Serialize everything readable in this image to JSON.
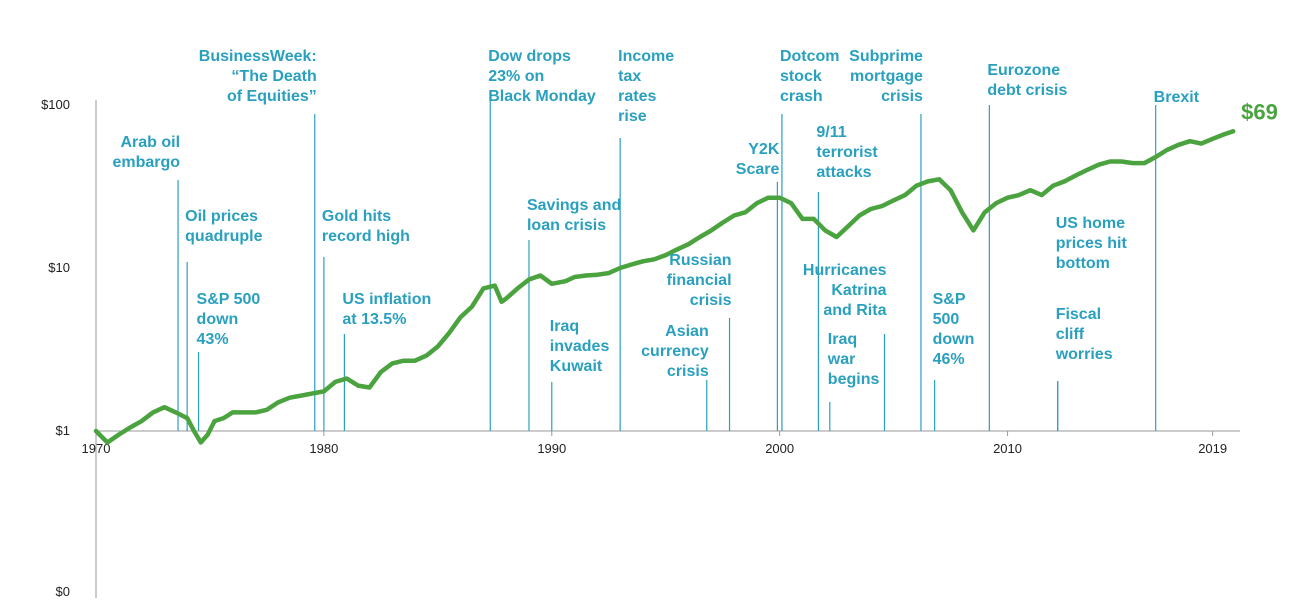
{
  "chart_data": {
    "type": "line",
    "title": "",
    "xlabel": "",
    "ylabel": "",
    "y_scale": "log",
    "y_ticks": [
      {
        "value": 100,
        "label": "$100"
      },
      {
        "value": 10,
        "label": "$10"
      },
      {
        "value": 1,
        "label": "$1"
      },
      {
        "value": 0,
        "label": "$0"
      }
    ],
    "x_ticks": [
      "1970",
      "1980",
      "1990",
      "2000",
      "2010",
      "2019"
    ],
    "xlim": [
      1970,
      2020.2
    ],
    "colors": {
      "line": "#4aa33e",
      "annotation": "#2aa0bf",
      "axis": "#9a9a9a"
    },
    "end_label": "$69",
    "series": [
      {
        "x": [
          1970.0,
          1970.5,
          1971.0,
          1971.5,
          1972.0,
          1972.5,
          1973.0,
          1973.5,
          1974.0,
          1974.3,
          1974.6,
          1974.9,
          1975.2,
          1975.6,
          1976.0,
          1976.5,
          1977.0,
          1977.5,
          1978.0,
          1978.5,
          1979.0,
          1979.5,
          1980.0,
          1980.5,
          1981.0,
          1981.5,
          1982.0,
          1982.5,
          1983.0,
          1983.5,
          1984.0,
          1984.5,
          1985.0,
          1985.5,
          1986.0,
          1986.5,
          1987.0,
          1987.5,
          1987.8,
          1988.0,
          1988.5,
          1989.0,
          1989.5,
          1990.0,
          1990.6,
          1991.0,
          1991.5,
          1992.0,
          1992.5,
          1993.0,
          1993.5,
          1994.0,
          1994.5,
          1995.0,
          1995.5,
          1996.0,
          1996.5,
          1997.0,
          1997.5,
          1998.0,
          1998.5,
          1999.0,
          1999.5,
          2000.0,
          2000.5,
          2001.0,
          2001.5,
          2002.0,
          2002.5,
          2003.0,
          2003.5,
          2004.0,
          2004.5,
          2005.0,
          2005.5,
          2006.0,
          2006.5,
          2007.0,
          2007.5,
          2008.0,
          2008.5,
          2009.0,
          2009.5,
          2010.0,
          2010.5,
          2011.0,
          2011.5,
          2012.0,
          2012.5,
          2013.0,
          2013.5,
          2014.0,
          2014.5,
          2015.0,
          2015.5,
          2016.0,
          2016.5,
          2017.0,
          2017.5,
          2018.0,
          2018.5,
          2019.0,
          2019.5,
          2019.9
        ],
        "values": [
          1.0,
          0.85,
          0.95,
          1.05,
          1.15,
          1.3,
          1.4,
          1.3,
          1.2,
          1.0,
          0.85,
          0.95,
          1.15,
          1.2,
          1.3,
          1.3,
          1.3,
          1.35,
          1.5,
          1.6,
          1.65,
          1.7,
          1.75,
          2.0,
          2.1,
          1.9,
          1.85,
          2.3,
          2.6,
          2.7,
          2.7,
          2.9,
          3.3,
          4.0,
          5.0,
          5.8,
          7.5,
          7.8,
          6.2,
          6.5,
          7.5,
          8.5,
          9.0,
          8.0,
          8.3,
          8.8,
          9.0,
          9.1,
          9.3,
          10.0,
          10.5,
          11.0,
          11.3,
          12.0,
          13.0,
          14.0,
          15.5,
          17.0,
          19.0,
          21.0,
          22.0,
          25.0,
          27.0,
          27.0,
          25.0,
          20.0,
          20.0,
          17.0,
          15.5,
          18.0,
          21.0,
          23.0,
          24.0,
          26.0,
          28.0,
          32.0,
          34.0,
          35.0,
          30.0,
          22.0,
          17.0,
          22.0,
          25.0,
          27.0,
          28.0,
          30.0,
          28.0,
          32.0,
          34.0,
          37.0,
          40.0,
          43.0,
          45.0,
          45.0,
          44.0,
          44.0,
          48.0,
          53.0,
          57.0,
          60.0,
          58.0,
          62.0,
          66.0,
          69.0
        ]
      }
    ],
    "annotations": [
      {
        "x": 1973.6,
        "lines": [
          "Arab oil",
          "embargo"
        ],
        "anchor": "end"
      },
      {
        "x": 1974.0,
        "lines": [
          "Oil prices",
          "quadruple"
        ],
        "anchor": "start"
      },
      {
        "x": 1974.5,
        "lines": [
          "S&P 500",
          "down",
          "43%"
        ],
        "anchor": "start"
      },
      {
        "x": 1979.6,
        "lines": [
          "BusinessWeek:",
          "“The Death",
          "of Equities”"
        ],
        "anchor": "end"
      },
      {
        "x": 1980.0,
        "lines": [
          "Gold hits",
          "record high"
        ],
        "anchor": "start"
      },
      {
        "x": 1980.9,
        "lines": [
          "US inflation",
          "at 13.5%"
        ],
        "anchor": "start"
      },
      {
        "x": 1987.3,
        "lines": [
          "Dow drops",
          "23% on",
          "Black Monday"
        ],
        "anchor": "start"
      },
      {
        "x": 1989.0,
        "lines": [
          "Savings and",
          "loan crisis"
        ],
        "anchor": "start"
      },
      {
        "x": 1990.0,
        "lines": [
          "Iraq",
          "invades",
          "Kuwait"
        ],
        "anchor": "start"
      },
      {
        "x": 1993.0,
        "lines": [
          "Income",
          "tax",
          "rates",
          "rise"
        ],
        "anchor": "start"
      },
      {
        "x": 1996.8,
        "lines": [
          "Asian",
          "currency",
          "crisis"
        ],
        "anchor": "end"
      },
      {
        "x": 1997.8,
        "lines": [
          "Russian",
          "financial",
          "crisis"
        ],
        "anchor": "end"
      },
      {
        "x": 1999.9,
        "lines": [
          "Y2K",
          "Scare"
        ],
        "anchor": "end"
      },
      {
        "x": 2000.1,
        "lines": [
          "Dotcom",
          "stock",
          "crash"
        ],
        "anchor": "start"
      },
      {
        "x": 2001.7,
        "lines": [
          "9/11",
          "terrorist",
          "attacks"
        ],
        "anchor": "start"
      },
      {
        "x": 2002.2,
        "lines": [
          "Iraq",
          "war",
          "begins"
        ],
        "anchor": "start"
      },
      {
        "x": 2004.6,
        "lines": [
          "Hurricanes",
          "Katrina",
          "and Rita"
        ],
        "anchor": "end"
      },
      {
        "x": 2006.2,
        "lines": [
          "Subprime",
          "mortgage",
          "crisis"
        ],
        "anchor": "end"
      },
      {
        "x": 2006.8,
        "lines": [
          "S&P",
          "500",
          "down",
          "46%"
        ],
        "anchor": "start"
      },
      {
        "x": 2009.2,
        "lines": [
          "Eurozone",
          "debt crisis"
        ],
        "anchor": "start"
      },
      {
        "x": 2012.2,
        "lines": [
          "US home",
          "prices hit",
          "bottom"
        ],
        "anchor": "start"
      },
      {
        "x": 2012.2,
        "lines": [
          "Fiscal",
          "cliff",
          "worries"
        ],
        "anchor": "start"
      },
      {
        "x": 2016.5,
        "lines": [
          "Brexit"
        ],
        "anchor": "start"
      }
    ]
  }
}
